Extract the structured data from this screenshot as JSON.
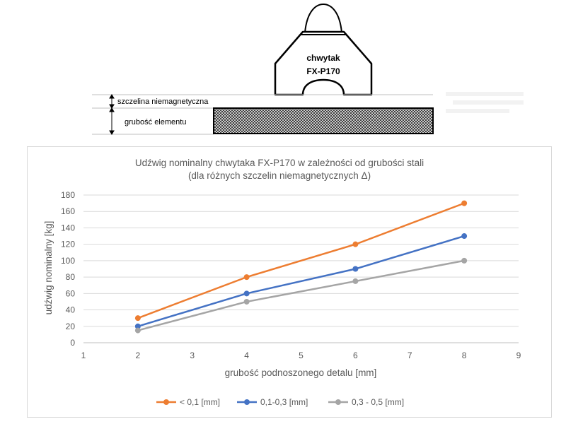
{
  "diagram": {
    "gripper_label_line1": "chwytak",
    "gripper_label_line2": "FX-P170",
    "gap_label": "szczelina niemagnetyczna",
    "thickness_label": "grubość elementu"
  },
  "chart_data": {
    "type": "line",
    "title": "Udźwig nominalny chwytaka FX-P170 w zależności od grubości stali",
    "subtitle": "(dla różnych szczelin niemagnetycznych Δ)",
    "xlabel": "grubość podnoszonego detalu [mm]",
    "ylabel": "udźwig nominalny [kg]",
    "xlim": [
      1,
      9
    ],
    "ylim": [
      0,
      180
    ],
    "xticks": [
      1,
      2,
      3,
      4,
      5,
      6,
      7,
      8,
      9
    ],
    "yticks": [
      0,
      20,
      40,
      60,
      80,
      100,
      120,
      140,
      160,
      180
    ],
    "grid": true,
    "legend_position": "bottom",
    "x": [
      2,
      4,
      6,
      8
    ],
    "series": [
      {
        "name": "< 0,1 [mm]",
        "values": [
          30,
          80,
          120,
          170
        ],
        "color": "#ED7D31"
      },
      {
        "name": "0,1-0,3 [mm]",
        "values": [
          20,
          60,
          90,
          130
        ],
        "color": "#4472C4"
      },
      {
        "name": "0,3 - 0,5 [mm]",
        "values": [
          15,
          50,
          75,
          100
        ],
        "color": "#A5A5A5"
      }
    ]
  }
}
